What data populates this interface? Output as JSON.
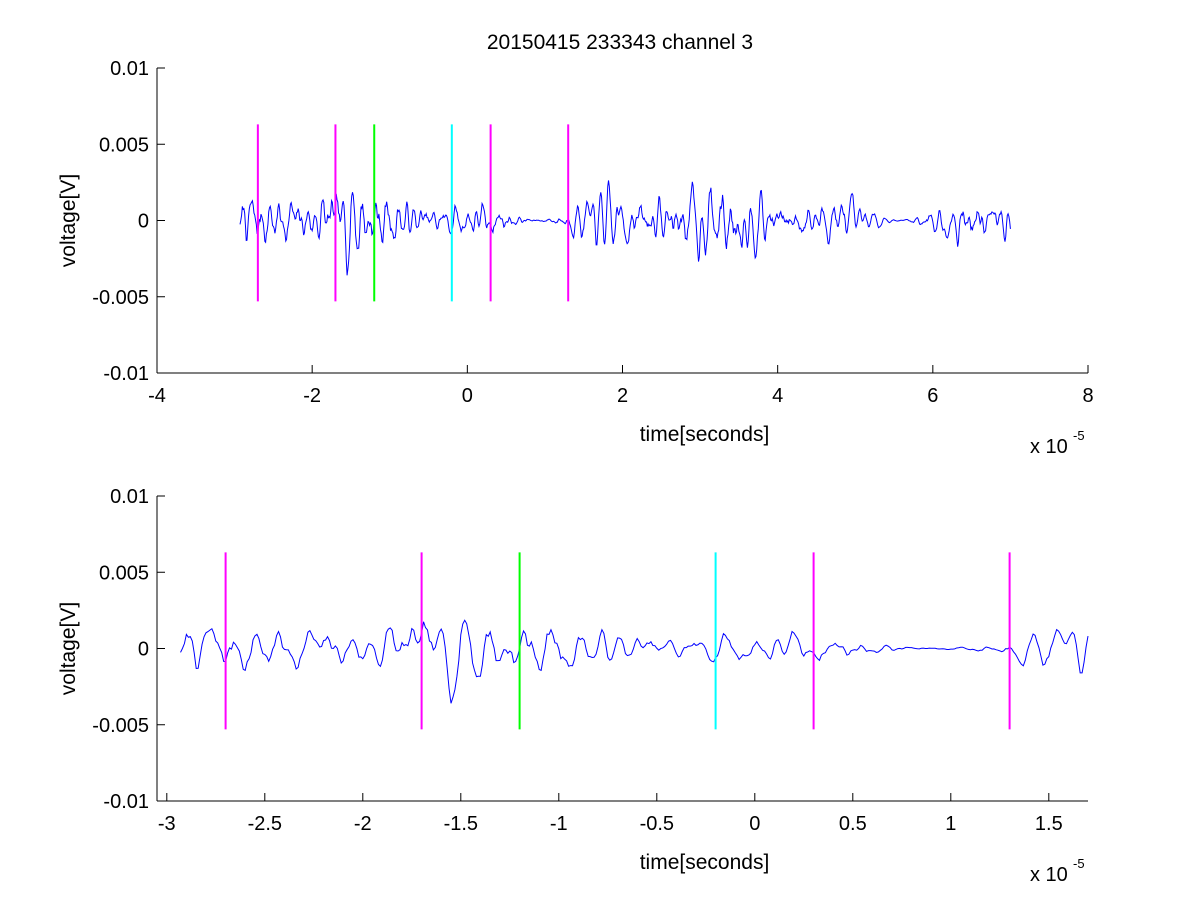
{
  "figure": {
    "title": "20150415 233343 channel 3"
  },
  "chart_data": [
    {
      "type": "line",
      "title": "20150415 233343 channel 3",
      "xlabel": "time[seconds]",
      "ylabel": "voltage[V]",
      "x_multiplier_label": "x 10",
      "x_multiplier_exponent": "-5",
      "xlim": [
        -4e-05,
        8e-05
      ],
      "ylim": [
        -0.01,
        0.01
      ],
      "x_ticks": [
        -4e-05,
        -2e-05,
        0,
        2e-05,
        4e-05,
        6e-05,
        8e-05
      ],
      "x_tick_labels": [
        "-4",
        "-2",
        "0",
        "2",
        "4",
        "6",
        "8"
      ],
      "y_ticks": [
        -0.01,
        -0.005,
        0,
        0.005,
        0.01
      ],
      "y_tick_labels": [
        "-0.01",
        "-0.005",
        "0",
        "0.005",
        "0.01"
      ],
      "grid": false,
      "series": [
        {
          "color": "#0000ff",
          "x_start": -2.93e-05,
          "x_end": 7e-05,
          "seed": 7,
          "amplitude": 0.0012
        }
      ],
      "markers": [
        {
          "x": -2.7e-05,
          "color": "#ff00ff",
          "y_from": -0.0053,
          "y_to": 0.0063
        },
        {
          "x": -1.7e-05,
          "color": "#ff00ff",
          "y_from": -0.0053,
          "y_to": 0.0063
        },
        {
          "x": -1.2e-05,
          "color": "#00ff00",
          "y_from": -0.0053,
          "y_to": 0.0063
        },
        {
          "x": -2e-06,
          "color": "#00ffff",
          "y_from": -0.0053,
          "y_to": 0.0063
        },
        {
          "x": 3e-06,
          "color": "#ff00ff",
          "y_from": -0.0053,
          "y_to": 0.0063
        },
        {
          "x": 1.3e-05,
          "color": "#ff00ff",
          "y_from": -0.0053,
          "y_to": 0.0063
        }
      ]
    },
    {
      "type": "line",
      "title": "",
      "xlabel": "time[seconds]",
      "ylabel": "voltage[V]",
      "x_multiplier_label": "x 10",
      "x_multiplier_exponent": "-5",
      "xlim": [
        -3.05e-05,
        1.7e-05
      ],
      "ylim": [
        -0.01,
        0.01
      ],
      "x_ticks": [
        -3e-05,
        -2.5e-05,
        -2e-05,
        -1.5e-05,
        -1e-05,
        -5e-06,
        0,
        5e-06,
        1e-05,
        1.5e-05
      ],
      "x_tick_labels": [
        "-3",
        "-2.5",
        "-2",
        "-1.5",
        "-1",
        "-0.5",
        "0",
        "0.5",
        "1",
        "1.5"
      ],
      "y_ticks": [
        -0.01,
        -0.005,
        0,
        0.005,
        0.01
      ],
      "y_tick_labels": [
        "-0.01",
        "-0.005",
        "0",
        "0.005",
        "0.01"
      ],
      "grid": false,
      "series": [
        {
          "color": "#0000ff",
          "x_start": -2.93e-05,
          "x_end": 1.7e-05,
          "seed": 7,
          "amplitude": 0.0012
        }
      ],
      "markers": [
        {
          "x": -2.7e-05,
          "color": "#ff00ff",
          "y_from": -0.0053,
          "y_to": 0.0063
        },
        {
          "x": -1.7e-05,
          "color": "#ff00ff",
          "y_from": -0.0053,
          "y_to": 0.0063
        },
        {
          "x": -1.2e-05,
          "color": "#00ff00",
          "y_from": -0.0053,
          "y_to": 0.0063
        },
        {
          "x": -2e-06,
          "color": "#00ffff",
          "y_from": -0.0053,
          "y_to": 0.0063
        },
        {
          "x": 3e-06,
          "color": "#ff00ff",
          "y_from": -0.0053,
          "y_to": 0.0063
        },
        {
          "x": 1.3e-05,
          "color": "#ff00ff",
          "y_from": -0.0053,
          "y_to": 0.0063
        }
      ]
    }
  ]
}
